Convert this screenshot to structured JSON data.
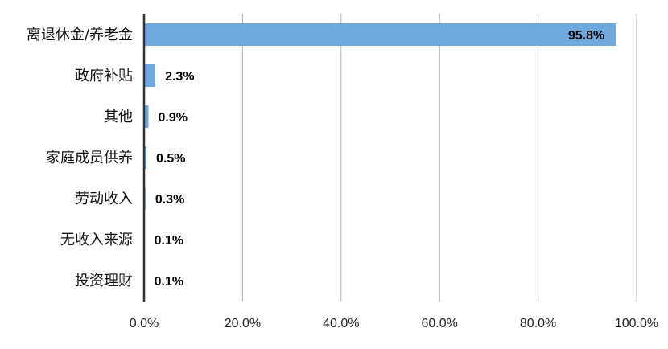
{
  "chart_data": {
    "type": "bar",
    "orientation": "horizontal",
    "categories": [
      "离退休金/养老金",
      "政府补贴",
      "其他",
      "家庭成员供养",
      "劳动收入",
      "无收入来源",
      "投资理财"
    ],
    "values": [
      95.8,
      2.3,
      0.9,
      0.5,
      0.3,
      0.1,
      0.1
    ],
    "data_labels": [
      "95.8%",
      "2.3%",
      "0.9%",
      "0.5%",
      "0.3%",
      "0.1%",
      "0.1%"
    ],
    "x_ticks": [
      "0.0%",
      "20.0%",
      "40.0%",
      "60.0%",
      "80.0%",
      "100.0%"
    ],
    "xlim": [
      0,
      100
    ],
    "grid": "vertical",
    "legend": "none",
    "bar_color": "#6fa8dc",
    "axis_color": "#333333",
    "grid_color": "#b0b0b0"
  }
}
